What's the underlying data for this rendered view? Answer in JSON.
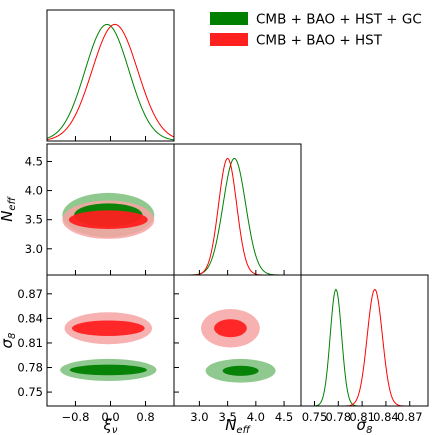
{
  "chart_data": {
    "type": "corner",
    "parameters": [
      {
        "id": "xi",
        "label": "ξν",
        "ticks": [
          -0.8,
          0.0,
          0.8
        ],
        "tick_labels": [
          "−0.8",
          "0.0",
          "0.8"
        ],
        "range": [
          -1.45,
          1.45
        ]
      },
      {
        "id": "neff",
        "label": "Neff",
        "ticks": [
          3.0,
          3.5,
          4.0,
          4.5
        ],
        "tick_labels": [
          "3.0",
          "3.5",
          "4.0",
          "4.5"
        ],
        "range": [
          2.55,
          4.8
        ]
      },
      {
        "id": "sigma8",
        "label": "σ8",
        "ticks": [
          0.75,
          0.78,
          0.81,
          0.84,
          0.87
        ],
        "tick_labels": [
          "0.75",
          "0.78",
          "0.81",
          "0.84",
          "0.87"
        ],
        "range": [
          0.733,
          0.893
        ]
      }
    ],
    "series": [
      {
        "name": "CMB + BAO + HST + GC",
        "color": "#008000",
        "fill_inner": "#008000",
        "fill_outer": "#7cc07c",
        "marginals": {
          "xi": {
            "mean": -0.08,
            "sigma": 0.5
          },
          "neff": {
            "mean": 3.62,
            "sigma": 0.2
          },
          "sigma8": {
            "mean": 0.777,
            "sigma": 0.0072
          }
        },
        "contours": {
          "xi-neff": {
            "center": [
              -0.05,
              3.58
            ],
            "r1": [
              0.78,
              0.2
            ],
            "r2": [
              1.05,
              0.38
            ]
          },
          "xi-sigma8": {
            "center": [
              -0.05,
              0.777
            ],
            "r1": [
              0.88,
              0.0065
            ],
            "r2": [
              1.1,
              0.0135
            ]
          },
          "neff-sigma8": {
            "center": [
              3.73,
              0.776
            ],
            "r1": [
              0.32,
              0.0062
            ],
            "r2": [
              0.62,
              0.0145
            ]
          }
        }
      },
      {
        "name": "CMB + BAO + HST",
        "color": "#ff0000",
        "fill_inner": "#ff2020",
        "fill_outer": "#f7a3a3",
        "marginals": {
          "xi": {
            "mean": 0.1,
            "sigma": 0.52
          },
          "neff": {
            "mean": 3.5,
            "sigma": 0.16
          },
          "sigma8": {
            "mean": 0.826,
            "sigma": 0.0095
          }
        },
        "contours": {
          "xi-neff": {
            "center": [
              -0.05,
              3.5
            ],
            "r1": [
              0.9,
              0.16
            ],
            "r2": [
              1.05,
              0.33
            ]
          },
          "xi-sigma8": {
            "center": [
              -0.05,
              0.828
            ],
            "r1": [
              0.83,
              0.0095
            ],
            "r2": [
              1.0,
              0.0195
            ]
          },
          "neff-sigma8": {
            "center": [
              3.55,
              0.828
            ],
            "r1": [
              0.29,
              0.011
            ],
            "r2": [
              0.52,
              0.0235
            ]
          }
        }
      }
    ],
    "legend": {
      "placement": "top-right"
    }
  }
}
